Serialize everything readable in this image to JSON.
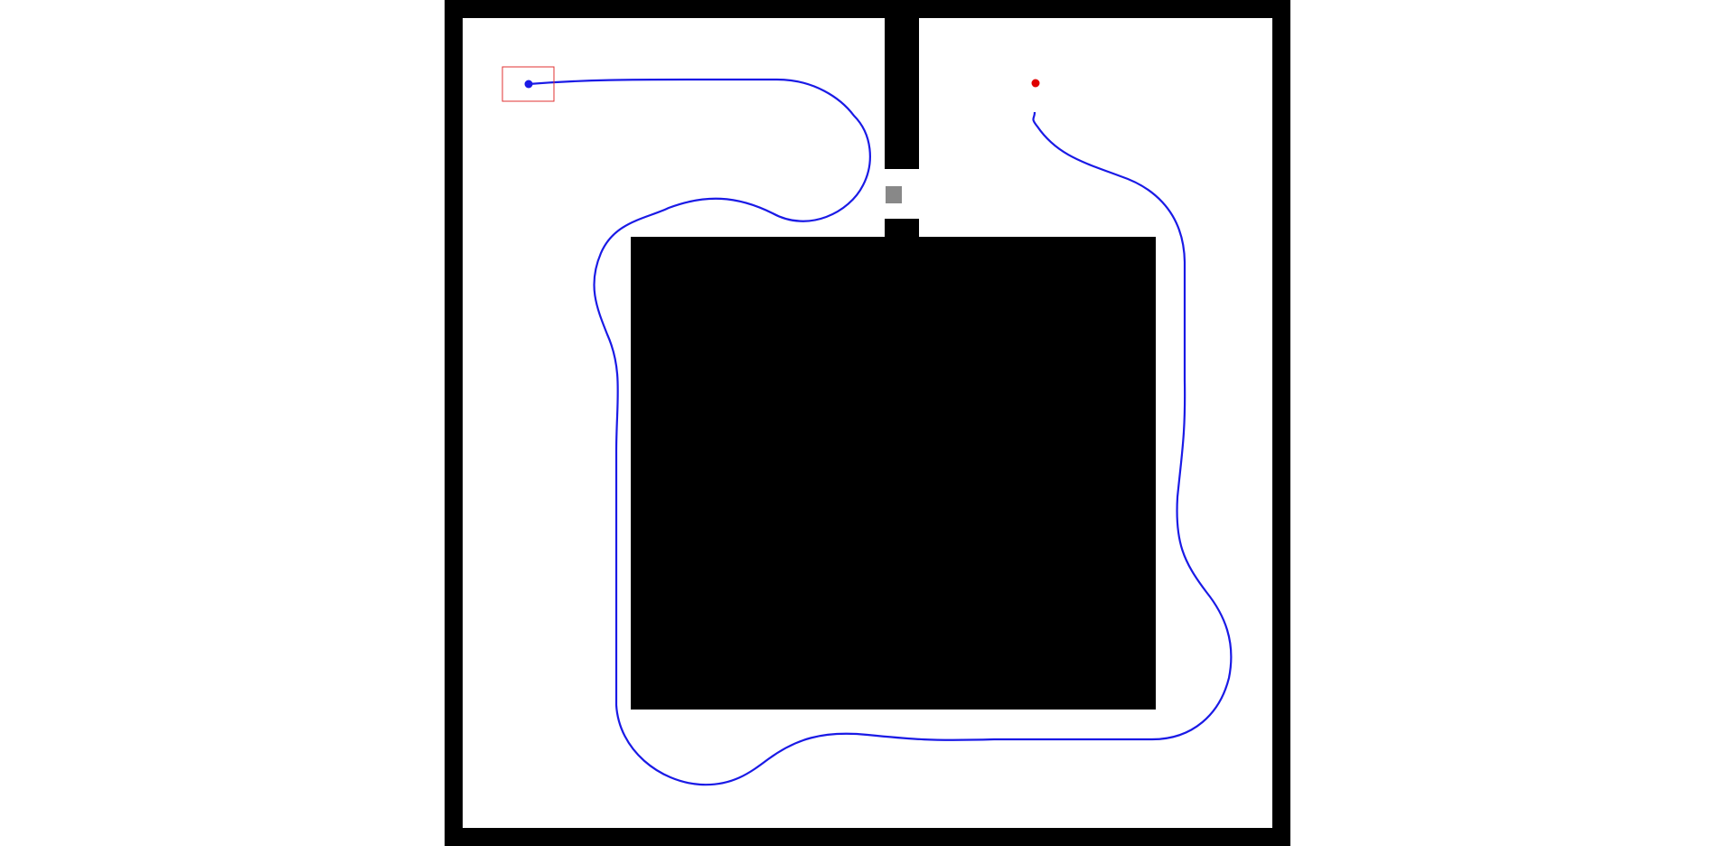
{
  "scene": {
    "description_hidden": "",
    "colors": {
      "background": "#ffffff",
      "walls": "#000000",
      "obstacle": "#000000",
      "door": "#888888",
      "path": "#1a1ae6",
      "goal": "#e00000",
      "start_box": "#e03030",
      "agent": "#1a1ae6"
    },
    "icons": {
      "agent": "agent-dot-icon",
      "goal": "goal-dot-icon",
      "door": "door-block-icon"
    }
  }
}
